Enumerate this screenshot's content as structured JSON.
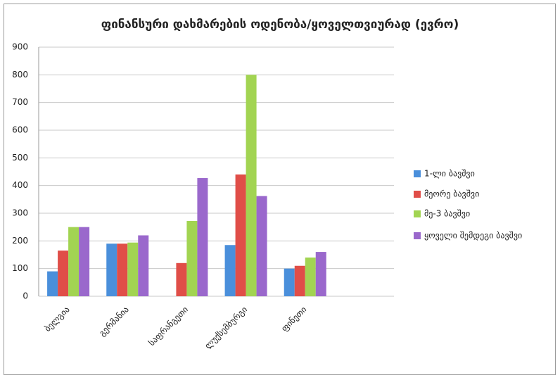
{
  "chart_data": {
    "type": "bar",
    "title": "ფინანსური დახმარების ოდენობა/ყოველთვიურად (ევრო)",
    "categories": [
      "ბელგია",
      "გერმანია",
      "საფრანგეთი",
      "ლუქსემბურგი",
      "ფინეთი",
      null
    ],
    "series": [
      {
        "name": "1-ლი ბავშვი",
        "color": "#4a8fdb",
        "values": [
          90,
          190,
          null,
          185,
          100,
          null
        ]
      },
      {
        "name": "მეორე ბავშვი",
        "color": "#e04e48",
        "values": [
          165,
          190,
          120,
          440,
          110,
          null
        ]
      },
      {
        "name": "მე-3 ბავშვი",
        "color": "#a2d452",
        "values": [
          250,
          194,
          272,
          800,
          140,
          null
        ]
      },
      {
        "name": "ყოველი შემდეგი ბავშვი",
        "color": "#9a68cc",
        "values": [
          250,
          220,
          427,
          362,
          160,
          null
        ]
      }
    ],
    "ylim": [
      0,
      900
    ],
    "yticks": [
      0,
      100,
      200,
      300,
      400,
      500,
      600,
      700,
      800,
      900
    ],
    "grid": true,
    "legend": "right"
  }
}
